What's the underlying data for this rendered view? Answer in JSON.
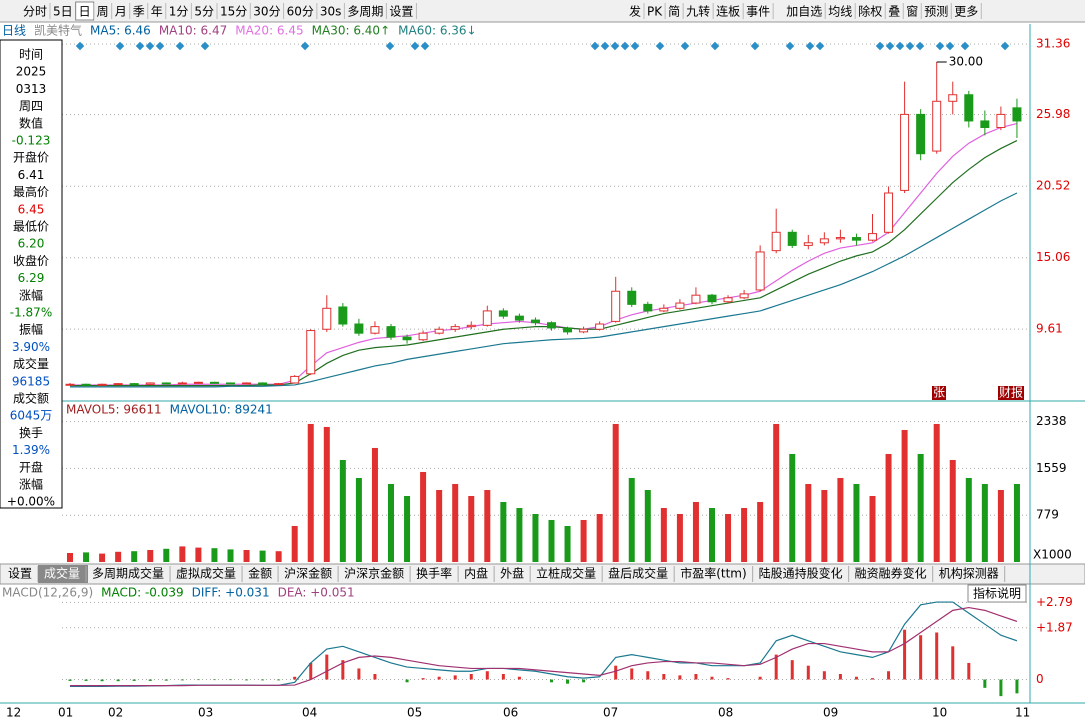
{
  "toolbar": {
    "left": [
      "分时",
      "5日",
      "日",
      "周",
      "月",
      "季",
      "年",
      "1分",
      "5分",
      "15分",
      "30分",
      "60分",
      "30s",
      "多周期",
      "设置"
    ],
    "right": [
      "发",
      "PK",
      "简",
      "九转",
      "连板",
      "事件",
      "加自选",
      "均线",
      "除权",
      "叠",
      "窗",
      "预测",
      "更多"
    ]
  },
  "info_panel": [
    {
      "texts": [
        "时间",
        "2025",
        "0313",
        "周四"
      ],
      "color": "#000"
    },
    {
      "texts": [
        "数值"
      ],
      "color": "#000"
    },
    {
      "texts": [
        "-0.123"
      ],
      "color": "#008000"
    },
    {
      "texts": [
        "开盘价"
      ],
      "color": "#000"
    },
    {
      "texts": [
        "6.41"
      ],
      "color": "#000"
    },
    {
      "texts": [
        "最高价"
      ],
      "color": "#000"
    },
    {
      "texts": [
        "6.45"
      ],
      "color": "#e00000"
    },
    {
      "texts": [
        "最低价"
      ],
      "color": "#000"
    },
    {
      "texts": [
        "6.20"
      ],
      "color": "#008000"
    },
    {
      "texts": [
        "收盘价"
      ],
      "color": "#000"
    },
    {
      "texts": [
        "6.29"
      ],
      "color": "#008000"
    },
    {
      "texts": [
        "涨幅"
      ],
      "color": "#000"
    },
    {
      "texts": [
        "-1.87%"
      ],
      "color": "#008000"
    },
    {
      "texts": [
        "振幅"
      ],
      "color": "#000"
    },
    {
      "texts": [
        "3.90%"
      ],
      "color": "#0050c0"
    },
    {
      "texts": [
        "成交量"
      ],
      "color": "#000"
    },
    {
      "texts": [
        "96185"
      ],
      "color": "#0050c0"
    },
    {
      "texts": [
        "成交额"
      ],
      "color": "#000"
    },
    {
      "texts": [
        "6045万"
      ],
      "color": "#0050c0"
    },
    {
      "texts": [
        "换手"
      ],
      "color": "#000"
    },
    {
      "texts": [
        "1.39%"
      ],
      "color": "#0050c0"
    },
    {
      "texts": [
        "开盘",
        "涨幅",
        "+0.00%"
      ],
      "color": "#000"
    }
  ],
  "main": {
    "legend": [
      {
        "text": "日线",
        "color": "#0060a0"
      },
      {
        "text": "凯美特气",
        "color": "#888"
      },
      {
        "text": "MA5: 6.46",
        "color": "#0060a0"
      },
      {
        "text": "MA10: 6.47",
        "color": "#a04080"
      },
      {
        "text": "MA20: 6.45",
        "color": "#e070e0"
      },
      {
        "text": "MA30: 6.40↑",
        "color": "#208020"
      },
      {
        "text": "MA60: 6.36↓",
        "color": "#208080"
      }
    ],
    "ylim": [
      4.2,
      32.9
    ],
    "yticks": [
      31.36,
      25.98,
      20.52,
      15.06,
      9.61
    ],
    "max_label": "30.00",
    "markers": [
      "张",
      "财报"
    ],
    "up_color": "#e0302f",
    "down_color": "#1a9a1a",
    "candles": [
      [
        5.35,
        5.5,
        5.3,
        5.4
      ],
      [
        5.4,
        5.45,
        5.3,
        5.35
      ],
      [
        5.35,
        5.45,
        5.3,
        5.4
      ],
      [
        5.4,
        5.5,
        5.35,
        5.45
      ],
      [
        5.45,
        5.5,
        5.35,
        5.4
      ],
      [
        5.4,
        5.55,
        5.35,
        5.5
      ],
      [
        5.5,
        5.55,
        5.4,
        5.45
      ],
      [
        5.45,
        5.6,
        5.4,
        5.5
      ],
      [
        5.5,
        5.6,
        5.45,
        5.55
      ],
      [
        5.55,
        5.6,
        5.45,
        5.5
      ],
      [
        5.5,
        5.55,
        5.4,
        5.45
      ],
      [
        5.45,
        5.55,
        5.4,
        5.5
      ],
      [
        5.5,
        5.55,
        5.35,
        5.4
      ],
      [
        5.4,
        5.5,
        5.35,
        5.45
      ],
      [
        5.5,
        6.1,
        5.45,
        6.0
      ],
      [
        6.2,
        9.6,
        6.1,
        9.5
      ],
      [
        9.6,
        12.2,
        9.4,
        11.2
      ],
      [
        11.3,
        11.6,
        9.8,
        10.0
      ],
      [
        10.0,
        10.4,
        9.1,
        9.3
      ],
      [
        9.3,
        10.2,
        9.2,
        9.8
      ],
      [
        9.8,
        10.0,
        8.8,
        9.0
      ],
      [
        9.0,
        9.2,
        8.5,
        8.8
      ],
      [
        8.8,
        9.5,
        8.7,
        9.3
      ],
      [
        9.3,
        9.8,
        9.2,
        9.6
      ],
      [
        9.6,
        10.0,
        9.4,
        9.8
      ],
      [
        9.8,
        10.2,
        9.6,
        9.9
      ],
      [
        9.9,
        11.4,
        9.8,
        11.0
      ],
      [
        11.0,
        11.2,
        10.4,
        10.6
      ],
      [
        10.6,
        10.8,
        10.1,
        10.3
      ],
      [
        10.3,
        10.5,
        9.9,
        10.1
      ],
      [
        10.1,
        10.2,
        9.5,
        9.7
      ],
      [
        9.7,
        9.8,
        9.2,
        9.4
      ],
      [
        9.4,
        9.8,
        9.3,
        9.6
      ],
      [
        9.6,
        10.2,
        9.5,
        10.0
      ],
      [
        10.2,
        13.6,
        10.1,
        12.5
      ],
      [
        12.5,
        12.8,
        11.3,
        11.5
      ],
      [
        11.5,
        11.7,
        10.8,
        11.0
      ],
      [
        11.0,
        11.5,
        10.9,
        11.2
      ],
      [
        11.2,
        11.9,
        11.1,
        11.6
      ],
      [
        11.6,
        12.8,
        11.5,
        12.2
      ],
      [
        12.2,
        12.3,
        11.5,
        11.7
      ],
      [
        11.7,
        12.2,
        11.6,
        12.0
      ],
      [
        12.0,
        12.6,
        11.9,
        12.3
      ],
      [
        12.6,
        16.0,
        12.5,
        15.5
      ],
      [
        15.6,
        18.8,
        15.4,
        17.0
      ],
      [
        17.0,
        17.2,
        15.8,
        16.0
      ],
      [
        16.0,
        16.8,
        15.7,
        16.2
      ],
      [
        16.2,
        17.0,
        16.0,
        16.5
      ],
      [
        16.5,
        17.2,
        16.2,
        16.6
      ],
      [
        16.6,
        16.9,
        16.0,
        16.4
      ],
      [
        16.4,
        18.4,
        16.3,
        16.9
      ],
      [
        17.0,
        20.5,
        16.9,
        20.0
      ],
      [
        20.2,
        28.5,
        20.0,
        26.0
      ],
      [
        26.0,
        26.4,
        22.5,
        23.0
      ],
      [
        23.2,
        30.0,
        23.0,
        27.0
      ],
      [
        27.0,
        28.5,
        26.0,
        27.5
      ],
      [
        27.5,
        27.8,
        25.0,
        25.5
      ],
      [
        25.5,
        26.3,
        24.4,
        25.0
      ],
      [
        25.0,
        26.6,
        24.8,
        26.0
      ],
      [
        26.5,
        27.2,
        24.2,
        25.5
      ]
    ],
    "ma": [
      {
        "color": "#e060e0",
        "values": [
          5.35,
          5.35,
          5.35,
          5.35,
          5.35,
          5.35,
          5.35,
          5.4,
          5.4,
          5.4,
          5.4,
          5.4,
          5.4,
          5.4,
          5.7,
          6.8,
          7.8,
          8.2,
          8.6,
          8.9,
          9.0,
          9.1,
          9.3,
          9.5,
          9.6,
          9.8,
          10.0,
          10.1,
          10.2,
          10.1,
          9.9,
          9.7,
          9.6,
          9.8,
          10.3,
          10.7,
          11.0,
          11.2,
          11.4,
          11.6,
          11.8,
          12.0,
          12.2,
          12.5,
          13.3,
          14.1,
          14.8,
          15.4,
          15.8,
          16.0,
          16.2,
          17.0,
          18.5,
          20.0,
          21.5,
          22.8,
          23.8,
          24.5,
          25.0,
          25.3
        ]
      },
      {
        "color": "#207020",
        "values": [
          5.3,
          5.3,
          5.3,
          5.3,
          5.3,
          5.3,
          5.3,
          5.3,
          5.3,
          5.3,
          5.3,
          5.3,
          5.35,
          5.35,
          5.5,
          6.2,
          7.0,
          7.6,
          8.0,
          8.2,
          8.3,
          8.4,
          8.6,
          8.8,
          9.0,
          9.2,
          9.4,
          9.6,
          9.7,
          9.8,
          9.8,
          9.7,
          9.6,
          9.6,
          9.9,
          10.2,
          10.5,
          10.8,
          11.0,
          11.2,
          11.4,
          11.6,
          11.8,
          12.0,
          12.6,
          13.2,
          13.8,
          14.3,
          14.8,
          15.2,
          15.5,
          16.2,
          17.2,
          18.4,
          19.6,
          20.8,
          21.8,
          22.7,
          23.4,
          24.0
        ]
      },
      {
        "color": "#1a7890",
        "values": [
          5.2,
          5.2,
          5.2,
          5.2,
          5.2,
          5.2,
          5.2,
          5.2,
          5.2,
          5.2,
          5.25,
          5.25,
          5.25,
          5.3,
          5.35,
          5.6,
          5.9,
          6.2,
          6.5,
          6.8,
          7.0,
          7.3,
          7.5,
          7.7,
          7.9,
          8.1,
          8.3,
          8.5,
          8.6,
          8.7,
          8.8,
          8.85,
          8.9,
          9.0,
          9.2,
          9.4,
          9.6,
          9.8,
          10.0,
          10.2,
          10.4,
          10.6,
          10.8,
          11.0,
          11.4,
          11.8,
          12.2,
          12.6,
          13.0,
          13.5,
          14.0,
          14.6,
          15.2,
          15.9,
          16.6,
          17.3,
          18.0,
          18.7,
          19.4,
          20.0
        ]
      }
    ]
  },
  "volume": {
    "legend": [
      {
        "text": "MAVOL5: 96611",
        "color": "#a02020"
      },
      {
        "text": "MAVOL10: 89241",
        "color": "#0060a0"
      }
    ],
    "ylim": [
      0,
      2666
    ],
    "yticks": [
      2338,
      1559,
      779
    ],
    "unit": "X1000",
    "values": [
      150,
      160,
      140,
      170,
      180,
      200,
      220,
      260,
      240,
      230,
      210,
      200,
      190,
      180,
      600,
      2300,
      2250,
      1700,
      1400,
      1900,
      1300,
      1100,
      1500,
      1200,
      1300,
      1100,
      1200,
      1000,
      900,
      800,
      700,
      600,
      700,
      800,
      2300,
      1400,
      1200,
      900,
      800,
      1000,
      900,
      800,
      900,
      1000,
      2300,
      1800,
      1300,
      1200,
      1400,
      1300,
      1100,
      1800,
      2200,
      1800,
      2300,
      1700,
      1400,
      1300,
      1200,
      1300
    ]
  },
  "tabs": [
    "设置",
    "成交量",
    "多周期成交量",
    "虚拟成交量",
    "金额",
    "沪深金额",
    "沪深京金额",
    "换手率",
    "内盘",
    "外盘",
    "立桩成交量",
    "盘后成交量",
    "市盈率(ttm)",
    "陆股通持股变化",
    "融资融券变化",
    "机构探测器"
  ],
  "macd": {
    "legend": [
      {
        "text": "MACD(12,26,9)",
        "color": "#888"
      },
      {
        "text": "MACD: -0.039",
        "color": "#008000"
      },
      {
        "text": "DIFF: +0.031",
        "color": "#0060a0"
      },
      {
        "text": "DEA: +0.051",
        "color": "#a04080"
      }
    ],
    "help": "指标说明",
    "ylim": [
      -0.74,
      3.38
    ],
    "yticks": [
      {
        "value": 2.79,
        "label": "+2.79"
      },
      {
        "value": 1.87,
        "label": "+1.87"
      },
      0
    ],
    "hist": [
      -0.05,
      -0.05,
      -0.06,
      -0.06,
      -0.05,
      -0.05,
      -0.04,
      -0.03,
      -0.02,
      -0.02,
      -0.02,
      -0.03,
      -0.03,
      -0.03,
      0.1,
      0.6,
      0.9,
      0.7,
      0.4,
      0.2,
      0.0,
      -0.1,
      0.05,
      0.1,
      0.15,
      0.2,
      0.3,
      0.2,
      0.1,
      0.0,
      -0.1,
      -0.15,
      -0.1,
      0.0,
      0.5,
      0.4,
      0.3,
      0.2,
      0.15,
      0.2,
      0.1,
      0.05,
      0.0,
      0.1,
      0.9,
      0.7,
      0.5,
      0.3,
      0.2,
      0.1,
      0.05,
      0.3,
      1.8,
      1.6,
      1.7,
      1.2,
      0.6,
      -0.3,
      -0.6,
      -0.5
    ],
    "lines": [
      {
        "color": "#1a7890",
        "values": [
          -0.25,
          -0.25,
          -0.25,
          -0.24,
          -0.24,
          -0.23,
          -0.22,
          -0.2,
          -0.2,
          -0.2,
          -0.2,
          -0.2,
          -0.21,
          -0.21,
          -0.1,
          0.6,
          1.1,
          1.2,
          1.0,
          0.8,
          0.6,
          0.45,
          0.4,
          0.35,
          0.3,
          0.3,
          0.4,
          0.4,
          0.35,
          0.3,
          0.2,
          0.1,
          0.05,
          0.1,
          0.8,
          0.9,
          0.8,
          0.7,
          0.6,
          0.6,
          0.5,
          0.5,
          0.5,
          0.6,
          1.4,
          1.6,
          1.4,
          1.2,
          1.0,
          0.9,
          0.8,
          1.0,
          2.0,
          2.7,
          2.8,
          2.8,
          2.4,
          2.0,
          1.6,
          1.4
        ]
      },
      {
        "color": "#a03070",
        "values": [
          -0.22,
          -0.22,
          -0.22,
          -0.22,
          -0.22,
          -0.22,
          -0.22,
          -0.22,
          -0.21,
          -0.21,
          -0.21,
          -0.21,
          -0.21,
          -0.21,
          -0.2,
          0.0,
          0.3,
          0.6,
          0.8,
          0.85,
          0.8,
          0.7,
          0.6,
          0.5,
          0.45,
          0.4,
          0.4,
          0.4,
          0.4,
          0.35,
          0.3,
          0.25,
          0.2,
          0.15,
          0.3,
          0.5,
          0.6,
          0.65,
          0.65,
          0.6,
          0.6,
          0.55,
          0.5,
          0.55,
          0.8,
          1.1,
          1.3,
          1.3,
          1.2,
          1.1,
          1.0,
          1.0,
          1.3,
          1.7,
          2.1,
          2.5,
          2.6,
          2.5,
          2.3,
          2.1
        ]
      }
    ]
  },
  "months": [
    "12",
    "01",
    "02",
    "03",
    "04",
    "05",
    "06",
    "07",
    "08",
    "09",
    "10",
    "11"
  ]
}
